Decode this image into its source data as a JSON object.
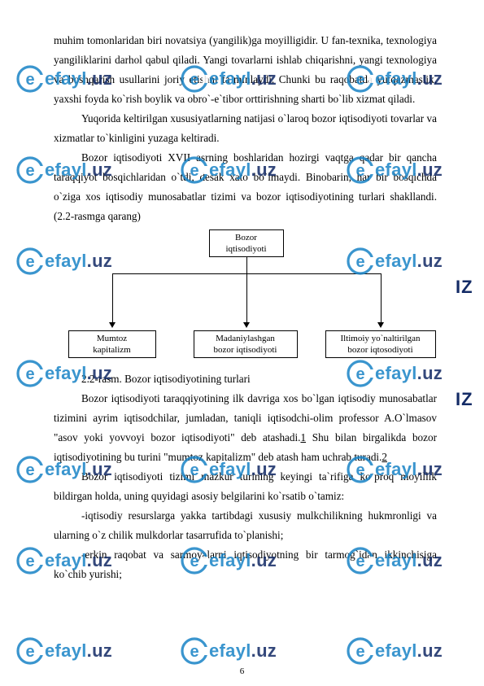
{
  "paragraphs": {
    "p1": "muhim tomonlaridan biri novatsiya (yangilik)ga moyilligidir. U fan-texnika, texnologiya yangiliklarini darhol qabul qiladi. Yangi tovarlarni ishlab chiqarishni, yangi texnologiya va boshqarish usullarini joriy etishni ta`minlaydi. Chunki bu raqobatda yutqazmaslik, yaxshi foyda ko`rish boylik va obro`-e`tibor orttirishning sharti bo`lib xizmat qiladi.",
    "p2": "Yuqorida keltirilgan xususiyatlarning natijasi o`laroq bozor iqtisodiyoti tovarlar va xizmatlar to`kinligini yuzaga keltiradi.",
    "p3": "Bozor iqtisodiyoti XVII asrning boshlaridan hozirgi vaqtga qadar bir qancha taraqqiyot bosqichlaridan o`tdi, desak xato bo`lmaydi. Binobarin, har bir bosqichda o`ziga xos iqtisodiy munosabatlar tizimi va bozor iqtisodiyotining turlari shakllandi. (2.2-rasmga qarang)",
    "caption": "2.2-rasm. Bozor iqtisodiyotining turlari",
    "p4a": "Bozor iqtisodiyoti taraqqiyotining ilk davriga xos bo`lgan iqtisodiy munosabatlar tizimini ayrim iqtisodchilar, jumladan, taniqli iqtisodchi-olim professor A.O`lmasov \"asov yoki yovvoyi bozor iqtisodiyoti\" deb atashadi.",
    "p4link1": "1",
    "p4b": " Shu bilan birgalikda bozor iqtisodiyotining bu turini \"mumtoz kapitalizm\" deb atash ham uchrab turadi.",
    "p4link2": "2",
    "p5": "Bozor iqtisodiyoti tizimi mazkur turining keyingi ta`rifiga ko`proq moyillik bildirgan holda, uning quyidagi asosiy belgilarini ko`rsatib o`tamiz:",
    "b1": "-iqtisodiy resurslarga yakka tartibdagi xususiy mulkchilikning hukmronligi va ularning o`z chilik mulkdorlar tasarrufida to`planishi;",
    "b2": "-erkin raqobat va sarmoyalarni iqtisodiyotning bir tarmog`idan ikkinchisiga ko`chib yurishi;"
  },
  "diagram": {
    "top": "Bozor\niqtisodiyoti",
    "b1": "Mumtoz\nkapitalizm",
    "b2": "Madaniylashgan\nbozor iqtisodiyoti",
    "b3": "Iltimoiy yo`naltirilgan\nbozor iqtosodiyoti"
  },
  "watermark": {
    "brand_blue": "efayl",
    "brand_navy": ".uz",
    "iz": "IZ"
  },
  "page_number": "6",
  "colors": {
    "wm_ring": "#1a84c6",
    "wm_e": "#1a84c6",
    "wm_navy": "#132b66"
  }
}
